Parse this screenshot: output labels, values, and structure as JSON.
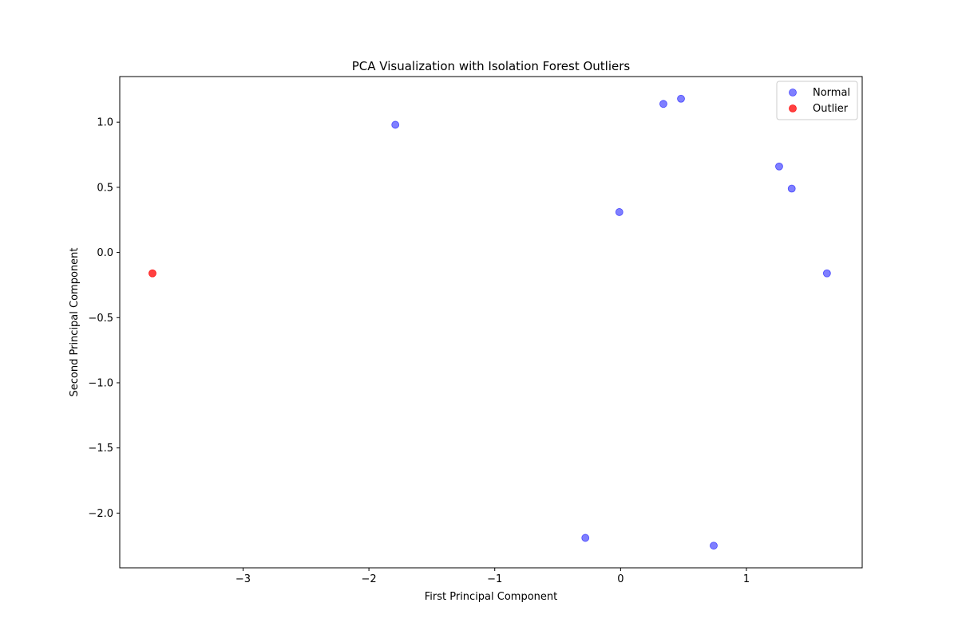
{
  "chart_data": {
    "type": "scatter",
    "title": "PCA Visualization with Isolation Forest Outliers",
    "xlabel": "First Principal Component",
    "ylabel": "Second Principal Component",
    "xlim": [
      -3.98,
      1.92
    ],
    "ylim": [
      -2.42,
      1.35
    ],
    "xticks": [
      -3,
      -2,
      -1,
      0,
      1
    ],
    "yticks": [
      -2.0,
      -1.5,
      -1.0,
      -0.5,
      0.0,
      0.5,
      1.0
    ],
    "xtick_labels": [
      "−3",
      "−2",
      "−1",
      "0",
      "1"
    ],
    "ytick_labels": [
      "−2.0",
      "−1.5",
      "−1.0",
      "−0.5",
      "0.0",
      "0.5",
      "1.0"
    ],
    "grid": false,
    "legend_position": "top-right",
    "series": [
      {
        "name": "Normal",
        "color": "#0000ff",
        "alpha": 0.5,
        "points": [
          {
            "x": -1.79,
            "y": 0.98
          },
          {
            "x": 0.34,
            "y": 1.14
          },
          {
            "x": 0.48,
            "y": 1.18
          },
          {
            "x": 1.26,
            "y": 0.66
          },
          {
            "x": 1.36,
            "y": 0.49
          },
          {
            "x": -0.01,
            "y": 0.31
          },
          {
            "x": 1.64,
            "y": -0.16
          },
          {
            "x": -0.28,
            "y": -2.19
          },
          {
            "x": 0.74,
            "y": -2.25
          }
        ]
      },
      {
        "name": "Outlier",
        "color": "#ff0000",
        "alpha": 0.75,
        "points": [
          {
            "x": -3.72,
            "y": -0.16
          }
        ]
      }
    ]
  }
}
